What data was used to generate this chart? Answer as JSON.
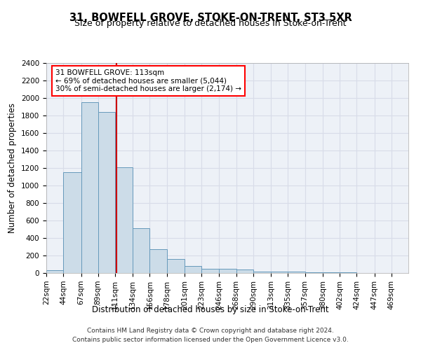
{
  "title": "31, BOWFELL GROVE, STOKE-ON-TRENT, ST3 5XR",
  "subtitle": "Size of property relative to detached houses in Stoke-on-Trent",
  "xlabel": "Distribution of detached houses by size in Stoke-on-Trent",
  "ylabel": "Number of detached properties",
  "footer_line1": "Contains HM Land Registry data © Crown copyright and database right 2024.",
  "footer_line2": "Contains public sector information licensed under the Open Government Licence v3.0.",
  "annotation_line1": "31 BOWFELL GROVE: 113sqm",
  "annotation_line2": "← 69% of detached houses are smaller (5,044)",
  "annotation_line3": "30% of semi-detached houses are larger (2,174) →",
  "bar_color": "#ccdce8",
  "bar_edge_color": "#6699bb",
  "vline_x": 113,
  "vline_color": "#cc0000",
  "categories": [
    "22sqm",
    "44sqm",
    "67sqm",
    "89sqm",
    "111sqm",
    "134sqm",
    "156sqm",
    "178sqm",
    "201sqm",
    "223sqm",
    "246sqm",
    "268sqm",
    "290sqm",
    "313sqm",
    "335sqm",
    "357sqm",
    "380sqm",
    "402sqm",
    "424sqm",
    "447sqm",
    "469sqm"
  ],
  "bin_edges": [
    22,
    44,
    67,
    89,
    111,
    134,
    156,
    178,
    201,
    223,
    246,
    268,
    290,
    313,
    335,
    357,
    380,
    402,
    424,
    447,
    469,
    491
  ],
  "values": [
    30,
    1150,
    1950,
    1840,
    1210,
    510,
    270,
    160,
    80,
    50,
    45,
    40,
    20,
    20,
    15,
    10,
    8,
    5,
    3,
    2,
    1
  ],
  "ylim": [
    0,
    2400
  ],
  "yticks": [
    0,
    200,
    400,
    600,
    800,
    1000,
    1200,
    1400,
    1600,
    1800,
    2000,
    2200,
    2400
  ],
  "bg_color": "#edf1f7",
  "grid_color": "#d8dce8",
  "title_fontsize": 10.5,
  "subtitle_fontsize": 9,
  "axis_label_fontsize": 8.5,
  "tick_fontsize": 7.5,
  "annotation_fontsize": 7.5,
  "footer_fontsize": 6.5
}
